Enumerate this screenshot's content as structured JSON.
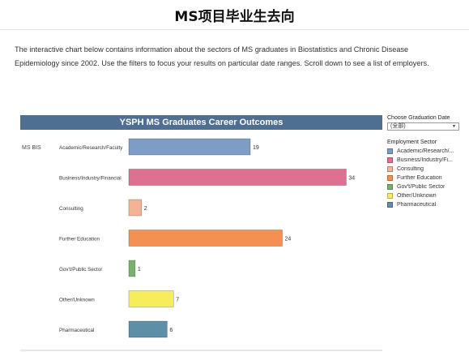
{
  "page": {
    "title": "MS项目毕业生去向",
    "intro": "The interactive chart below contains information about the sectors of MS graduates in Biostatistics and Chronic Disease Epidemiology since 2002. Use the filters to focus your results on particular date ranges. Scroll down to see a list of employers."
  },
  "viz": {
    "title": "YSPH MS Graduates Career Outcomes",
    "row_label": "MS BIS",
    "filter": {
      "label": "Choose Graduation Date",
      "selected": "(全部)"
    },
    "legend": {
      "title": "Employment Sector",
      "items": [
        {
          "label": "Academic/Research/...",
          "color": "#7f9cc4"
        },
        {
          "label": "Business/Industry/Fi...",
          "color": "#e07092"
        },
        {
          "label": "Consulting",
          "color": "#f4b394"
        },
        {
          "label": "Further Education",
          "color": "#f49152"
        },
        {
          "label": "Gov't/Public Sector",
          "color": "#78b06e"
        },
        {
          "label": "Other/Unknown",
          "color": "#f7ec5b"
        },
        {
          "label": "Pharmaceutical",
          "color": "#5d8fa6"
        }
      ]
    }
  },
  "chart_data": {
    "type": "bar",
    "orientation": "horizontal",
    "title": "YSPH MS Graduates Career Outcomes",
    "row_group": "MS BIS",
    "categories": [
      "Academic/Research/Faculty",
      "Business/Industry/Financial",
      "Consulting",
      "Further Education",
      "Gov't/Public Sector",
      "Other/Unknown",
      "Pharmaceutical"
    ],
    "values": [
      19,
      34,
      2,
      24,
      1,
      7,
      6
    ],
    "colors": [
      "#7f9cc4",
      "#e07092",
      "#f4b394",
      "#f49152",
      "#78b06e",
      "#f7ec5b",
      "#5d8fa6"
    ],
    "data_labels": true,
    "grid": false
  }
}
